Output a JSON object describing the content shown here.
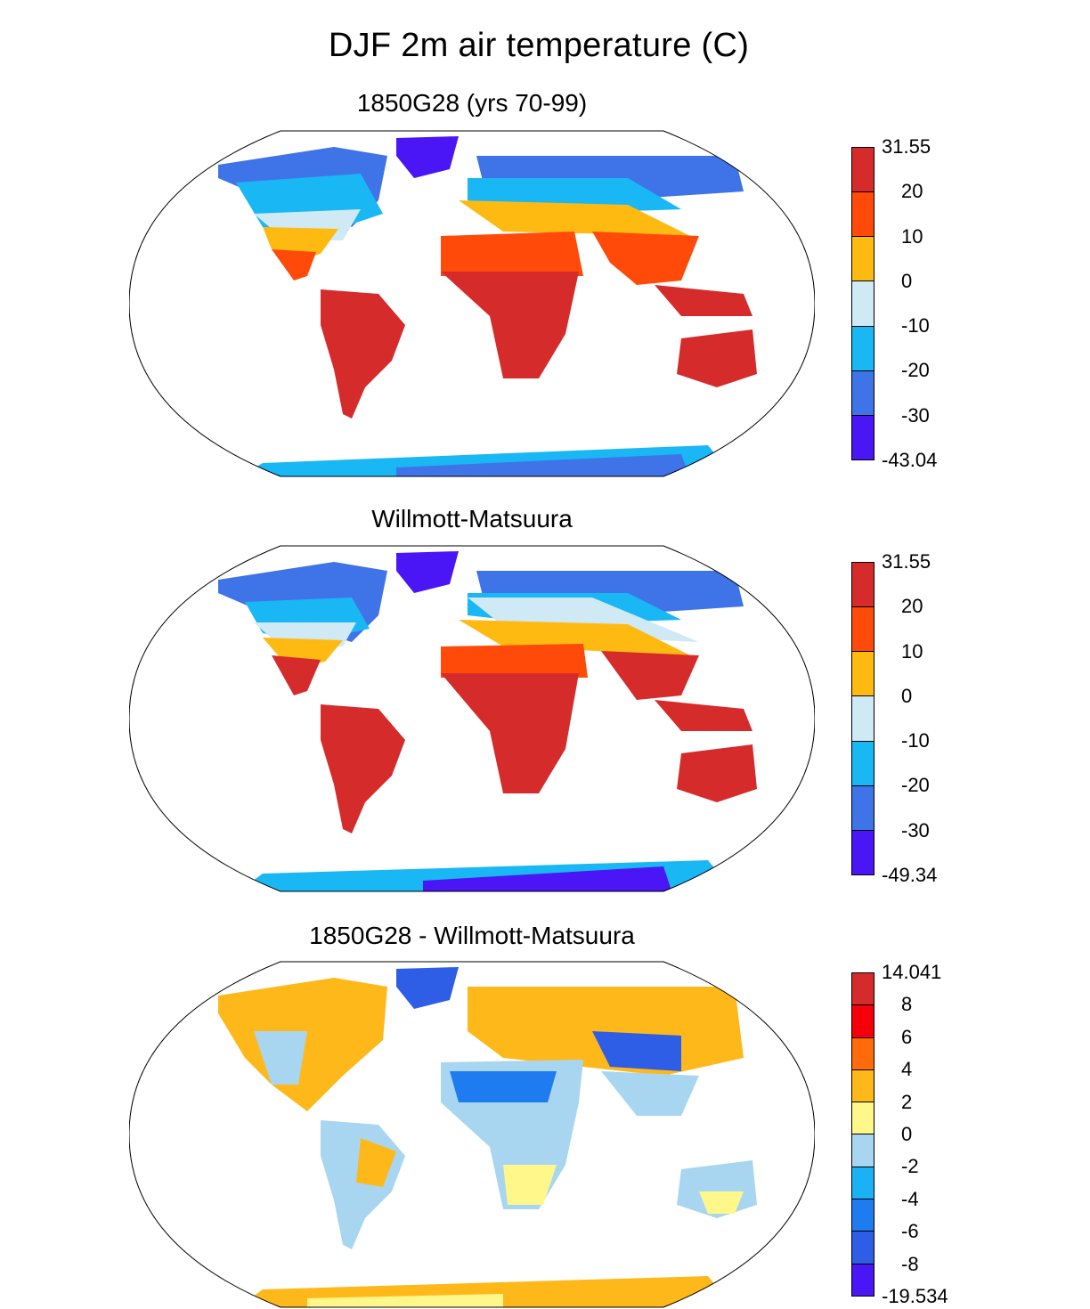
{
  "title": "DJF 2m air temperature (C)",
  "panels": [
    {
      "id": "model",
      "title": "1850G28 (yrs 70-99)",
      "colorbar": {
        "labels": [
          "31.55",
          "20",
          "10",
          "0",
          "-10",
          "-20",
          "-30",
          "-43.04"
        ],
        "colors": [
          "#d62b2b",
          "#ff4a0a",
          "#ffba12",
          "#cfe9f5",
          "#1ab7f5",
          "#3f73e8",
          "#4b16f5"
        ]
      }
    },
    {
      "id": "obs",
      "title": "Willmott-Matsuura",
      "colorbar": {
        "labels": [
          "31.55",
          "20",
          "10",
          "0",
          "-10",
          "-20",
          "-30",
          "-49.34"
        ],
        "colors": [
          "#d62b2b",
          "#ff4a0a",
          "#ffba12",
          "#cfe9f5",
          "#1ab7f5",
          "#3f73e8",
          "#4b16f5"
        ]
      }
    },
    {
      "id": "diff",
      "title": "1850G28 - Willmott-Matsuura",
      "colorbar": {
        "labels": [
          "14.041",
          "8",
          "6",
          "4",
          "2",
          "0",
          "-2",
          "-4",
          "-6",
          "-8",
          "-19.534"
        ],
        "colors": [
          "#d62b2b",
          "#f5000a",
          "#ff6a0a",
          "#ffb81a",
          "#fff78a",
          "#a8d6f0",
          "#1ab2f5",
          "#1f7cf0",
          "#2f5ee6",
          "#4b16f5"
        ]
      }
    }
  ]
}
